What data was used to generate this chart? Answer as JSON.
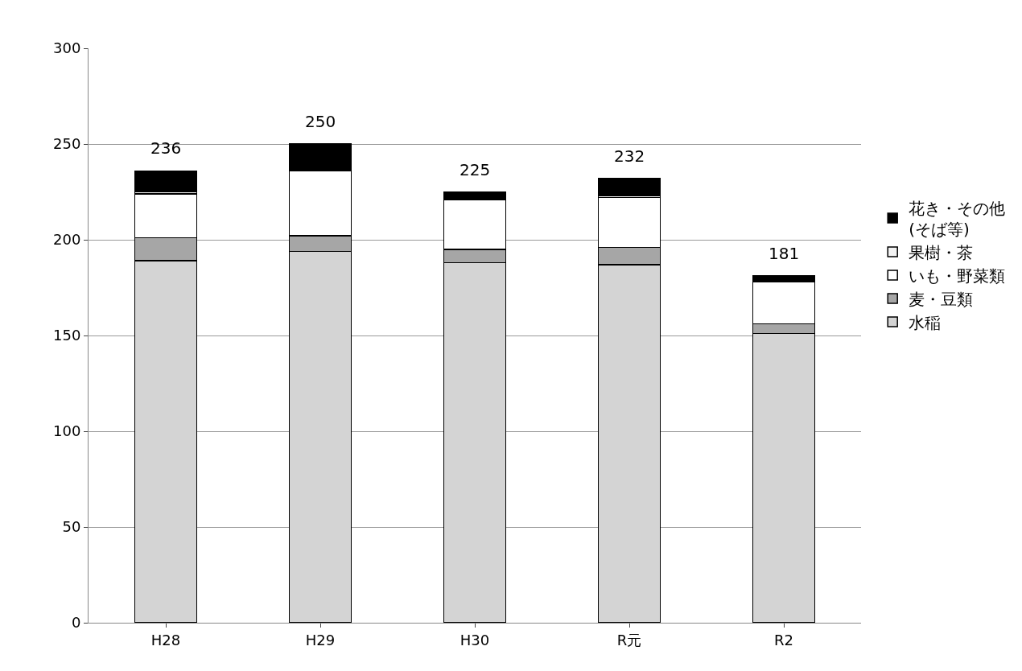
{
  "chart_data": {
    "type": "bar",
    "stacked": true,
    "categories": [
      "H28",
      "H29",
      "H30",
      "R元",
      "R2"
    ],
    "series": [
      {
        "name": "水稲",
        "color": "#d4d4d4",
        "values": [
          189,
          194,
          188,
          187,
          151
        ]
      },
      {
        "name": "麦・豆類",
        "color": "#a6a6a6",
        "values": [
          12,
          8,
          7,
          9,
          5
        ]
      },
      {
        "name": "いも・野菜類",
        "color": "#ffffff",
        "values": [
          23,
          34,
          26,
          26,
          22
        ]
      },
      {
        "name": "果樹・茶",
        "color": "#f2f2f2",
        "values": [
          1,
          0,
          0,
          1,
          0
        ]
      },
      {
        "name": "花き・その他\n(そば等)",
        "color": "#000000",
        "values": [
          11,
          14,
          4,
          9,
          3
        ]
      }
    ],
    "totals": [
      "236",
      "250",
      "225",
      "232",
      "181"
    ],
    "ylim": [
      0,
      300
    ],
    "yticks": [
      0,
      50,
      100,
      150,
      200,
      250,
      300
    ],
    "grid": "y",
    "legend": "right"
  }
}
